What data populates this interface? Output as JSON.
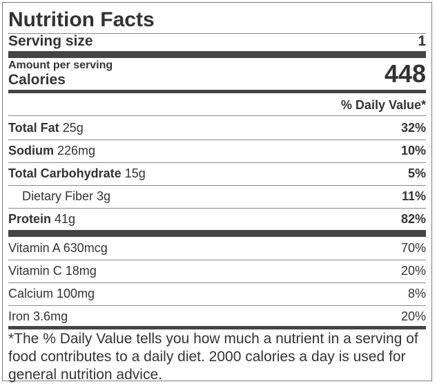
{
  "title": "Nutrition Facts",
  "serving": {
    "label": "Serving size",
    "value": "1"
  },
  "amount_per_serving": "Amount per serving",
  "calories": {
    "label": "Calories",
    "value": "448"
  },
  "daily_value_header": "% Daily Value*",
  "nutrients": [
    {
      "name": "Total Fat",
      "amount": "25g",
      "percent": "32%"
    },
    {
      "name": "Sodium",
      "amount": "226mg",
      "percent": "10%"
    },
    {
      "name": "Total Carbohydrate",
      "amount": "15g",
      "percent": "5%"
    },
    {
      "name": "Dietary Fiber",
      "amount": "3g",
      "percent": "11%"
    },
    {
      "name": "Protein",
      "amount": "41g",
      "percent": "82%"
    }
  ],
  "vitamins": [
    {
      "name": "Vitamin A",
      "amount": "630mcg",
      "percent": "70%"
    },
    {
      "name": "Vitamin C",
      "amount": "18mg",
      "percent": "20%"
    },
    {
      "name": "Calcium",
      "amount": "100mg",
      "percent": "8%"
    },
    {
      "name": "Iron",
      "amount": "3.6mg",
      "percent": "20%"
    }
  ],
  "footnote": "*The % Daily Value tells you how much a nutrient in a serving of food contributes to a daily diet. 2000 calories a day is used for general nutrition advice."
}
